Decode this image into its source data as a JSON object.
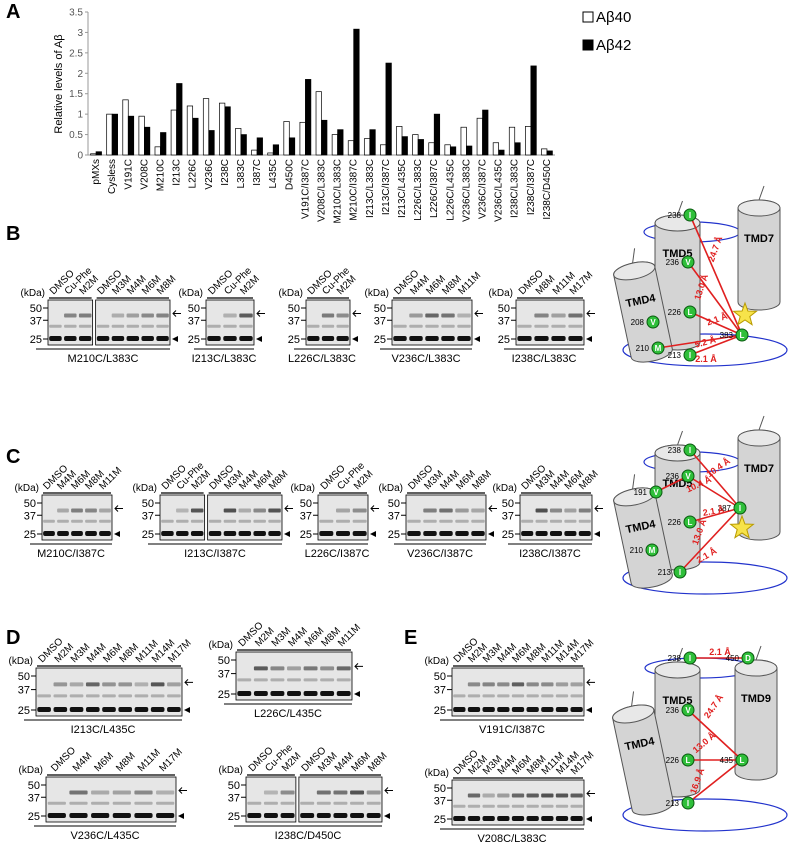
{
  "chart_data": {
    "type": "bar",
    "panel": "A",
    "ylabel": "Relative levels of Aβ",
    "categories": [
      "pMXs",
      "Cysless",
      "V191C",
      "V208C",
      "M210C",
      "I213C",
      "L226C",
      "V236C",
      "I238C",
      "L383C",
      "I387C",
      "L435C",
      "D450C",
      "V191C/I387C",
      "V208C/L383C",
      "M210C/L383C",
      "M210C/I387C",
      "I213C/L383C",
      "I213C/I387C",
      "I213C/L435C",
      "L226C/L383C",
      "L226C/I387C",
      "L226C/L435C",
      "V236C/L383C",
      "V236C/I387C",
      "V236C/L435C",
      "I238C/L383C",
      "I238C/I387C",
      "I238C/D450C"
    ],
    "series": [
      {
        "name": "Aβ40",
        "color": "#ffffff",
        "values": [
          0.03,
          1.0,
          1.35,
          0.95,
          0.2,
          1.1,
          1.2,
          1.38,
          1.27,
          0.65,
          0.12,
          0.05,
          0.82,
          0.8,
          1.55,
          0.5,
          0.35,
          0.4,
          0.25,
          0.7,
          0.5,
          0.3,
          0.25,
          0.68,
          0.9,
          0.3,
          0.68,
          0.7,
          0.15
        ]
      },
      {
        "name": "Aβ42",
        "color": "#000000",
        "values": [
          0.08,
          1.0,
          0.95,
          0.68,
          0.55,
          1.75,
          0.9,
          0.6,
          1.18,
          0.5,
          0.42,
          0.25,
          0.42,
          1.85,
          0.85,
          0.62,
          3.08,
          0.62,
          2.25,
          0.45,
          0.38,
          1.0,
          0.2,
          0.22,
          1.1,
          0.12,
          0.3,
          2.18,
          0.1
        ]
      }
    ],
    "ylim": [
      0,
      3.5
    ],
    "yticks": [
      0,
      0.5,
      1,
      1.5,
      2,
      2.5,
      3,
      3.5
    ],
    "grid": false
  },
  "panels": [
    "B",
    "C",
    "D",
    "E"
  ],
  "markers": {
    "unit": "(kDa)",
    "ticks": [
      "50",
      "37",
      "25"
    ]
  },
  "blots": [
    {
      "caption": "M210C/L383C",
      "groups": [
        [
          "DMSO",
          "Cu-Phe",
          "M2M"
        ],
        [
          "DMSO",
          "M3M",
          "M4M",
          "M6M",
          "M8M"
        ]
      ]
    },
    {
      "caption": "I213C/L383C",
      "groups": [
        [
          "DMSO",
          "Cu-Phe",
          "M2M"
        ]
      ]
    },
    {
      "caption": "L226C/L383C",
      "groups": [
        [
          "DMSO",
          "Cu-Phe",
          "M2M"
        ]
      ]
    },
    {
      "caption": "V236C/L383C",
      "groups": [
        [
          "DMSO",
          "M4M",
          "M6M",
          "M8M",
          "M11M"
        ]
      ]
    },
    {
      "caption": "I238C/L383C",
      "groups": [
        [
          "DMSO",
          "M8M",
          "M11M",
          "M17M"
        ]
      ]
    },
    {
      "caption": "M210C/I387C",
      "groups": [
        [
          "DMSO",
          "M4M",
          "M6M",
          "M8M",
          "M11M"
        ]
      ]
    },
    {
      "caption": "I213C/I387C",
      "groups": [
        [
          "DMSO",
          "Cu-Phe",
          "M2M"
        ],
        [
          "DMSO",
          "M3M",
          "M4M",
          "M6M",
          "M8M"
        ]
      ]
    },
    {
      "caption": "L226C/I387C",
      "groups": [
        [
          "DMSO",
          "Cu-Phe",
          "M2M"
        ]
      ]
    },
    {
      "caption": "V236C/I387C",
      "groups": [
        [
          "DMSO",
          "M3M",
          "M4M",
          "M6M",
          "M8M"
        ]
      ]
    },
    {
      "caption": "I238C/I387C",
      "groups": [
        [
          "DMSO",
          "M3M",
          "M4M",
          "M6M",
          "M8M"
        ]
      ]
    },
    {
      "caption": "I213C/L435C",
      "groups": [
        [
          "DMSO",
          "M2M",
          "M3M",
          "M4M",
          "M6M",
          "M8M",
          "M11M",
          "M14M",
          "M17M"
        ]
      ]
    },
    {
      "caption": "L226C/L435C",
      "groups": [
        [
          "DMSO",
          "M2M",
          "M3M",
          "M4M",
          "M6M",
          "M8M",
          "M11M"
        ]
      ]
    },
    {
      "caption": "V236C/L435C",
      "groups": [
        [
          "DMSO",
          "M4M",
          "M6M",
          "M8M",
          "M11M",
          "M17M"
        ]
      ]
    },
    {
      "caption": "I238C/D450C",
      "groups": [
        [
          "DMSO",
          "Cu-Phe",
          "M2M"
        ],
        [
          "DMSO",
          "M3M",
          "M4M",
          "M6M",
          "M8M"
        ]
      ]
    },
    {
      "caption": "V191C/I387C",
      "groups": [
        [
          "DMSO",
          "M2M",
          "M3M",
          "M4M",
          "M6M",
          "M8M",
          "M11M",
          "M14M",
          "M17M"
        ]
      ]
    },
    {
      "caption": "V208C/L383C",
      "groups": [
        [
          "DMSO",
          "M2M",
          "M3M",
          "M4M",
          "M6M",
          "M8M",
          "M11M",
          "M14M",
          "M17M"
        ]
      ]
    }
  ],
  "diagrams": [
    {
      "helices": [
        "TMD5",
        "TMD7",
        "TMD4"
      ],
      "residues": [
        {
          "num": "238",
          "aa": "I"
        },
        {
          "num": "236",
          "aa": "V"
        },
        {
          "num": "226",
          "aa": "L"
        },
        {
          "num": "208",
          "aa": "V"
        },
        {
          "num": "210",
          "aa": "M"
        },
        {
          "num": "213",
          "aa": "I"
        },
        {
          "num": "383",
          "aa": "L"
        }
      ],
      "distances": [
        "24.7 Å",
        "13.0 Å",
        "2.1 Å",
        "5.2 Å",
        "2.1 Å"
      ]
    },
    {
      "helices": [
        "TMD5",
        "TMD7",
        "TMD4"
      ],
      "residues": [
        {
          "num": "238",
          "aa": "I"
        },
        {
          "num": "236",
          "aa": "V"
        },
        {
          "num": "191",
          "aa": "V"
        },
        {
          "num": "226",
          "aa": "L"
        },
        {
          "num": "210",
          "aa": "M"
        },
        {
          "num": "213",
          "aa": "I"
        },
        {
          "num": "387",
          "aa": "I"
        }
      ],
      "distances": [
        "10.4 Å",
        "10.4 Å",
        "2.1 Å",
        "13.0 Å",
        "2.1 Å"
      ]
    },
    {
      "helices": [
        "TMD5",
        "TMD9",
        "TMD4"
      ],
      "residues": [
        {
          "num": "238",
          "aa": "I"
        },
        {
          "num": "450",
          "aa": "D"
        },
        {
          "num": "236",
          "aa": "V"
        },
        {
          "num": "226",
          "aa": "L"
        },
        {
          "num": "213",
          "aa": "I"
        },
        {
          "num": "435",
          "aa": "L"
        }
      ],
      "distances": [
        "2.1 Å",
        "24.7 Å",
        "13.0 Å",
        "16.9 Å"
      ]
    }
  ]
}
